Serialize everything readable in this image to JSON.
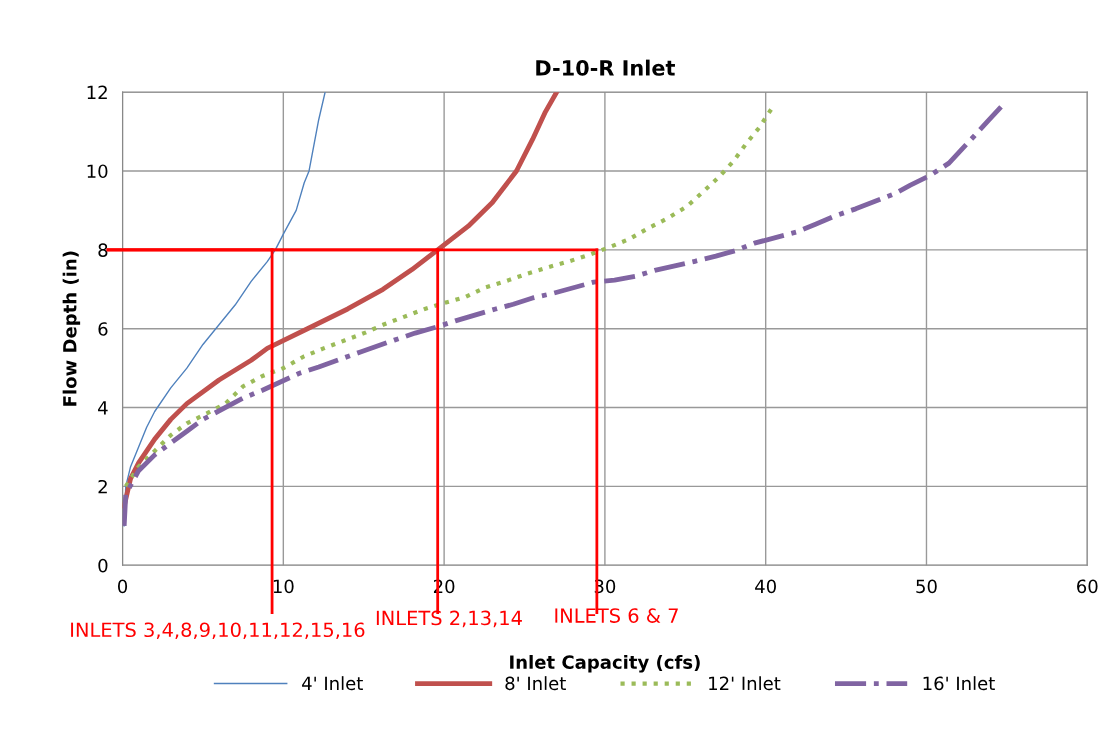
{
  "chart_data": {
    "type": "line",
    "title": "D-10-R Inlet",
    "xlabel": "Inlet Capacity (cfs)",
    "ylabel": "Flow Depth (in)",
    "xlim": [
      0,
      60
    ],
    "xticks": [
      0,
      10,
      20,
      30,
      40,
      50,
      60
    ],
    "ylim": [
      0,
      12
    ],
    "yticks": [
      0,
      2,
      4,
      6,
      8,
      10,
      12
    ],
    "grid": true,
    "legend": "bottom",
    "marker": "none",
    "series": [
      {
        "name": "4' Inlet",
        "color": "#4f81bd",
        "line_style": "solid",
        "x": [
          0.1,
          0.2,
          0.5,
          1,
          1.5,
          2,
          3,
          4,
          5,
          6,
          7,
          8,
          9,
          9.5,
          10,
          10.8,
          11.3,
          11.6,
          12.2,
          12.6
        ],
        "values": [
          1,
          2,
          2.5,
          3,
          3.5,
          3.9,
          4.5,
          5,
          5.6,
          6.1,
          6.6,
          7.2,
          7.7,
          8,
          8.4,
          9,
          9.7,
          10,
          11.3,
          12
        ]
      },
      {
        "name": "8' Inlet",
        "color": "#c0504d",
        "line_style": "solid",
        "x": [
          0.1,
          0.5,
          1,
          2,
          3,
          4,
          6,
          8,
          9,
          11.5,
          14,
          16.2,
          18,
          19.6,
          21.5,
          23,
          24.5,
          25.5,
          26.3,
          27
        ],
        "values": [
          1.5,
          2.2,
          2.6,
          3.2,
          3.7,
          4.1,
          4.7,
          5.2,
          5.5,
          6,
          6.5,
          7,
          7.5,
          8,
          8.6,
          9.2,
          10,
          10.8,
          11.5,
          12
        ]
      },
      {
        "name": "12' Inlet",
        "color": "#9bbb59",
        "line_style": "dotted",
        "x": [
          0.2,
          1,
          2,
          3,
          4,
          5,
          6.4,
          7.5,
          8.7,
          10,
          11.3,
          12.5,
          13.8,
          15.1,
          16.2,
          17.5,
          18.8,
          20,
          21.3,
          22.6,
          23.8,
          25.2,
          26.4,
          27.7,
          29,
          30.3,
          31.5,
          32.7,
          33.9,
          35.1,
          36.1,
          37.1,
          38,
          38.8,
          39.6,
          40.4
        ],
        "values": [
          2,
          2.5,
          2.9,
          3.3,
          3.6,
          3.8,
          4.1,
          4.54,
          4.8,
          5,
          5.3,
          5.5,
          5.7,
          5.9,
          6.1,
          6.3,
          6.5,
          6.65,
          6.8,
          7.05,
          7.2,
          7.4,
          7.55,
          7.7,
          7.87,
          8.07,
          8.27,
          8.55,
          8.8,
          9.1,
          9.47,
          9.85,
          10.25,
          10.7,
          11.1,
          11.6
        ]
      },
      {
        "name": "16' Inlet",
        "color": "#8064a2",
        "line_style": "dashdot",
        "x": [
          0.1,
          0.2,
          1,
          2,
          3,
          4,
          5,
          7.5,
          8.7,
          11,
          12.2,
          13.5,
          14.8,
          16.9,
          18.2,
          19.5,
          20.7,
          23.2,
          24.3,
          25.5,
          26.8,
          29.3,
          30.6,
          31.9,
          33.1,
          35.6,
          36.9,
          38.2,
          39.3,
          41.9,
          43.1,
          44.3,
          45.6,
          48,
          49,
          50.2,
          51.4,
          53,
          53.9,
          54.8
        ],
        "values": [
          1,
          1.8,
          2.4,
          2.8,
          3.1,
          3.4,
          3.7,
          4.24,
          4.44,
          4.87,
          5.03,
          5.22,
          5.41,
          5.71,
          5.89,
          6.04,
          6.2,
          6.5,
          6.62,
          6.78,
          6.9,
          7.18,
          7.23,
          7.33,
          7.48,
          7.71,
          7.84,
          7.99,
          8.17,
          8.45,
          8.65,
          8.86,
          9.04,
          9.42,
          9.64,
          9.88,
          10.2,
          10.9,
          11.3,
          11.7
        ]
      }
    ],
    "annotations": [
      {
        "text": "INLETS 3,4,8,9,10,11,12,15,16",
        "x": 9.3,
        "y": 8
      },
      {
        "text": "INLETS 2,13,14",
        "x": 19.6,
        "y": 8
      },
      {
        "text": "INLETS 6 & 7",
        "x": 29.5,
        "y": 8
      }
    ]
  }
}
